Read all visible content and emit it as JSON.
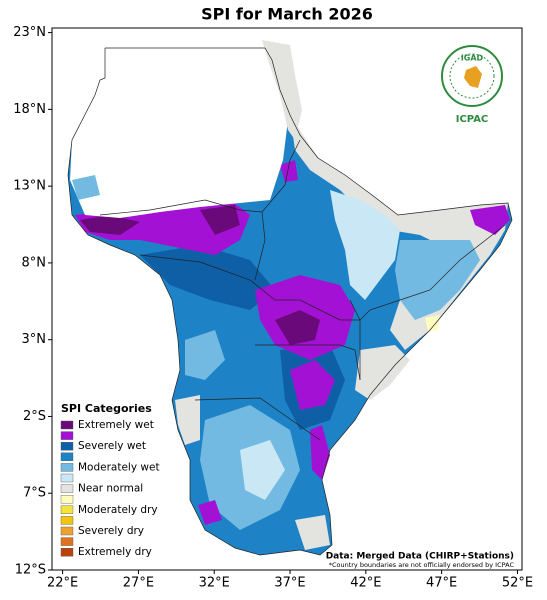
{
  "title": "SPI for March 2026",
  "map": {
    "xlim": [
      21.3,
      52.3
    ],
    "ylim": [
      -12,
      23.3
    ],
    "xticks": [
      {
        "value": 22,
        "label": "22°E"
      },
      {
        "value": 27,
        "label": "27°E"
      },
      {
        "value": 32,
        "label": "32°E"
      },
      {
        "value": 37,
        "label": "37°E"
      },
      {
        "value": 42,
        "label": "42°E"
      },
      {
        "value": 47,
        "label": "47°E"
      },
      {
        "value": 52,
        "label": "52°E"
      }
    ],
    "yticks": [
      {
        "value": 23,
        "label": "23°N"
      },
      {
        "value": 18,
        "label": "18°N"
      },
      {
        "value": 13,
        "label": "13°N"
      },
      {
        "value": 8,
        "label": "8°N"
      },
      {
        "value": 3,
        "label": "3°N"
      },
      {
        "value": -2,
        "label": "2°S"
      },
      {
        "value": -7,
        "label": "7°S"
      },
      {
        "value": -12,
        "label": "12°S"
      }
    ]
  },
  "legend": {
    "title": "SPI Categories",
    "colors": [
      "#6a0a7a",
      "#a312d4",
      "#0f5fa6",
      "#1d82c6",
      "#72bae2",
      "#c9e7f5",
      "#e3e3e0",
      "#fdfdc0",
      "#f4e33a",
      "#f1c512",
      "#eea22e",
      "#e0731f",
      "#b9420f"
    ],
    "labels": [
      "Extremely wet",
      "Severely wet",
      "Moderately wet",
      "Near normal",
      "Moderately dry",
      "Severely dry",
      "Extremely dry"
    ]
  },
  "logo": {
    "name": "IGAD",
    "org": "ICPAC"
  },
  "source": "Data: Merged Data (CHIRP+Stations)",
  "disclaimer": "*Country boundaries are not officially endorsed by ICPAC"
}
